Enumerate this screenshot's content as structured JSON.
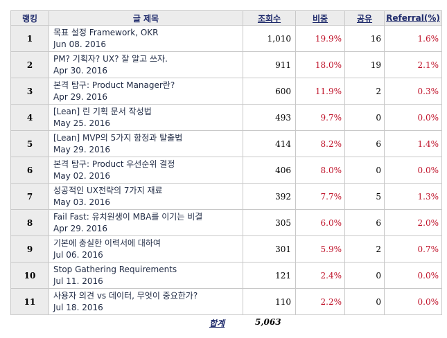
{
  "table": {
    "headers": {
      "rank": "랭킹",
      "title": "글 제목",
      "views": "조회수",
      "share": "비중",
      "shares": "공유",
      "referral": "Referral(%)"
    },
    "rows": [
      {
        "rank": "1",
        "title": "목표 설정 Framework, OKR",
        "date": "Jun 08. 2016",
        "views": "1,010",
        "share": "19.9%",
        "shares": "16",
        "referral": "1.6%"
      },
      {
        "rank": "2",
        "title": "PM? 기획자? UX? 잘 알고 쓰자.",
        "date": "Apr 30. 2016",
        "views": "911",
        "share": "18.0%",
        "shares": "19",
        "referral": "2.1%"
      },
      {
        "rank": "3",
        "title": "본격 탐구: Product Manager란?",
        "date": "Apr 29. 2016",
        "views": "600",
        "share": "11.9%",
        "shares": "2",
        "referral": "0.3%"
      },
      {
        "rank": "4",
        "title": "[Lean] 린 기획 문서 작성법",
        "date": "May 25. 2016",
        "views": "493",
        "share": "9.7%",
        "shares": "0",
        "referral": "0.0%"
      },
      {
        "rank": "5",
        "title": "[Lean] MVP의 5가지 함정과 탈출법",
        "date": "May 29. 2016",
        "views": "414",
        "share": "8.2%",
        "shares": "6",
        "referral": "1.4%"
      },
      {
        "rank": "6",
        "title": "본격 탐구: Product 우선순위 결정",
        "date": "May 02. 2016",
        "views": "406",
        "share": "8.0%",
        "shares": "0",
        "referral": "0.0%"
      },
      {
        "rank": "7",
        "title": "성공적인 UX전략의 7가지 재료",
        "date": "May 03. 2016",
        "views": "392",
        "share": "7.7%",
        "shares": "5",
        "referral": "1.3%"
      },
      {
        "rank": "8",
        "title": "Fail Fast: 유치원생이 MBA를 이기는 비결",
        "date": "Apr 29. 2016",
        "views": "305",
        "share": "6.0%",
        "shares": "6",
        "referral": "2.0%"
      },
      {
        "rank": "9",
        "title": "기본에 충실한 이력서에 대하여",
        "date": "Jul 06. 2016",
        "views": "301",
        "share": "5.9%",
        "shares": "2",
        "referral": "0.7%"
      },
      {
        "rank": "10",
        "title": "Stop Gathering Requirements",
        "date": "Jul 11. 2016",
        "views": "121",
        "share": "2.4%",
        "shares": "0",
        "referral": "0.0%"
      },
      {
        "rank": "11",
        "title": "사용자 의견 vs 데이터, 무엇이 중요한가?",
        "date": "Jul 18. 2016",
        "views": "110",
        "share": "2.2%",
        "shares": "0",
        "referral": "0.0%"
      }
    ]
  },
  "footer": {
    "total_label": "합계",
    "total_value": "5,063"
  }
}
